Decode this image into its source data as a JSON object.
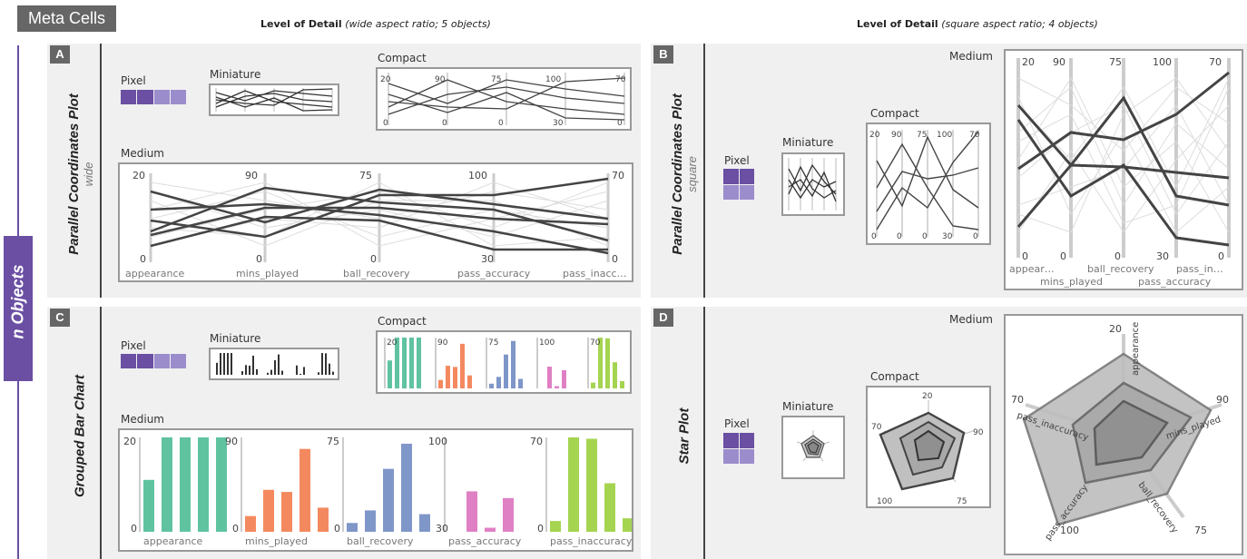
{
  "header": {
    "badge": "Meta Cells",
    "lod_left_bold": "Level of Detail",
    "lod_left_italic": "(wide aspect ratio; 5 objects)",
    "lod_right_bold": "Level of Detail",
    "lod_right_italic": "(square aspect ratio; 4 objects)"
  },
  "side_label": "n Objects",
  "panels": {
    "A": {
      "letter": "A",
      "title": "Parallel Coordinates Plot",
      "subtitle": "wide"
    },
    "B": {
      "letter": "B",
      "title": "Parallel Coordinates Plot",
      "subtitle": "square"
    },
    "C": {
      "letter": "C",
      "title": "Grouped Bar Chart",
      "subtitle": ""
    },
    "D": {
      "letter": "D",
      "title": "Star Plot",
      "subtitle": ""
    }
  },
  "levels": {
    "pixel": "Pixel",
    "miniature": "Miniature",
    "compact": "Compact",
    "medium": "Medium"
  },
  "axes": [
    "appearance",
    "mins_played",
    "ball_recovery",
    "pass_accuracy",
    "pass_inacc…"
  ],
  "axes_bar": [
    "appearance",
    "mins_played",
    "ball_recovery",
    "pass_accuracy",
    "pass_inaccuracy"
  ],
  "axes_square": [
    "appear…",
    "mins_played",
    "ball_recovery",
    "pass_accuracy",
    "pass_in…"
  ],
  "maxes": [
    "20",
    "90",
    "75",
    "100",
    "70"
  ],
  "mins": [
    "0",
    "0",
    "0",
    "30",
    "0"
  ],
  "star_labels": [
    "appearance",
    "mins_played",
    "ball_recovery",
    "pass_accuracy",
    "pass_inaccuracy"
  ],
  "colors": {
    "purple_dark": "#6a4fa3",
    "purple_light": "#9b8ccc",
    "teal": "#5fc3a0",
    "orange": "#f4895f",
    "blue": "#7f96c8",
    "pink": "#e080c4",
    "green": "#a5d451"
  },
  "chart_data": {
    "type": "bar",
    "categories": [
      "appearance",
      "mins_played",
      "ball_recovery",
      "pass_accuracy",
      "pass_inaccuracy"
    ],
    "series": [
      {
        "values": [
          11,
          15,
          7,
          3,
          8
        ]
      },
      {
        "values": [
          28,
          40,
          17,
          60,
          72
        ]
      },
      {
        "values": [
          43,
          38,
          50,
          33,
          69
        ]
      },
      {
        "values": [
          92,
          79,
          70,
          55,
          36
        ]
      },
      {
        "values": [
          67,
          23,
          14,
          29,
          10
        ]
      }
    ],
    "ylim_per_category": [
      [
        0,
        20
      ],
      [
        0,
        90
      ],
      [
        0,
        75
      ],
      [
        30,
        100
      ],
      [
        0,
        70
      ]
    ]
  }
}
